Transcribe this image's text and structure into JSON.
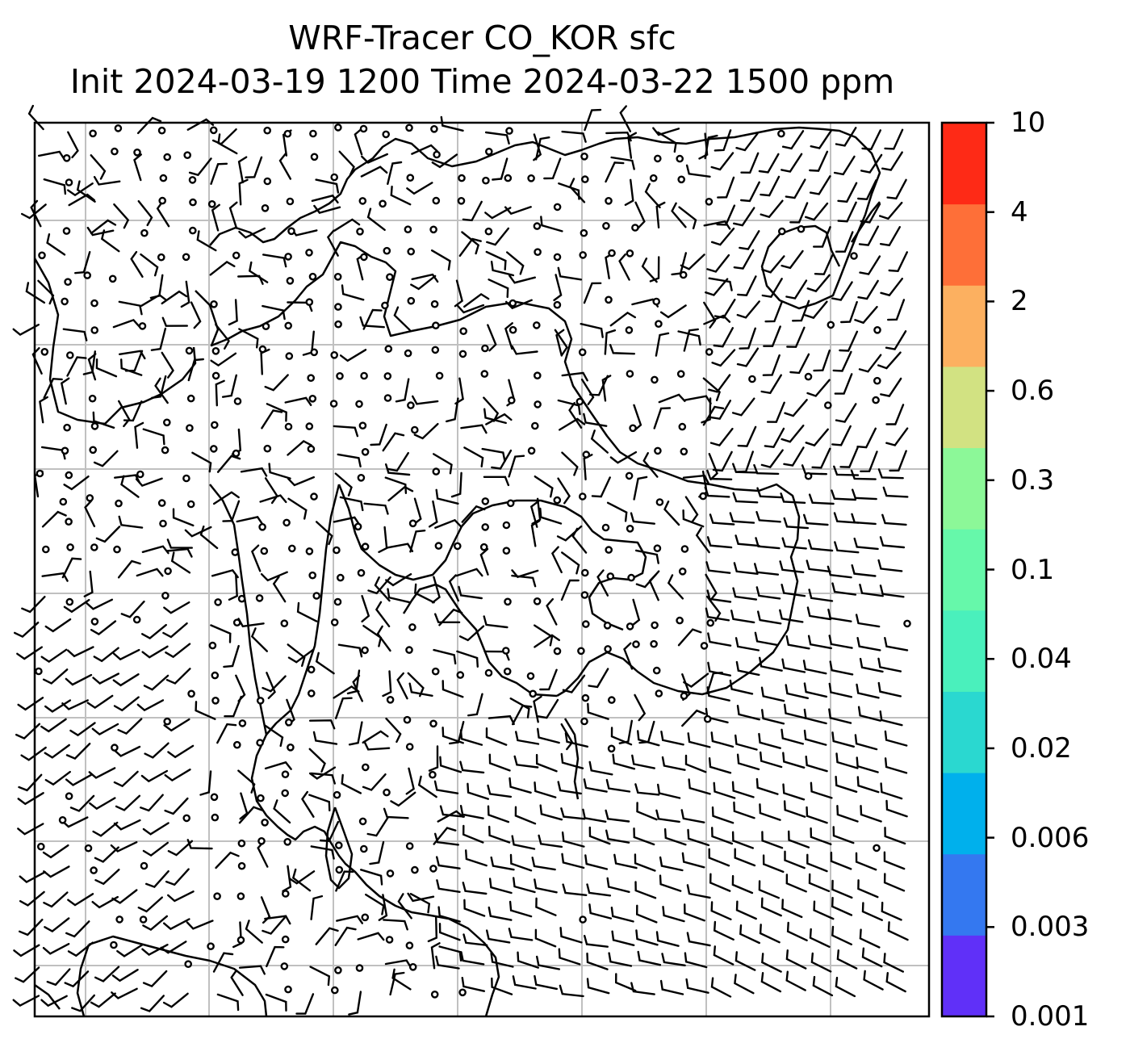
{
  "title": {
    "line1": "WRF-Tracer CO_KOR sfc",
    "line2": "Init 2024-03-19 1200 Time 2024-03-22 1500 ppm"
  },
  "colorbar": {
    "levels": [
      "0.001",
      "0.003",
      "0.006",
      "0.02",
      "0.04",
      "0.1",
      "0.3",
      "0.6",
      "2",
      "4",
      "10"
    ],
    "colors": [
      "#6030f8",
      "#3478f0",
      "#00b0ec",
      "#2ad8d0",
      "#4af0bc",
      "#66f8aa",
      "#8cf898",
      "#d2e282",
      "#fcb060",
      "#fe6f38",
      "#fe2a16"
    ]
  },
  "map": {
    "gridline_color": "#c0c0c0",
    "coastline_color": "#000000",
    "wind_barb_color": "#000000"
  }
}
